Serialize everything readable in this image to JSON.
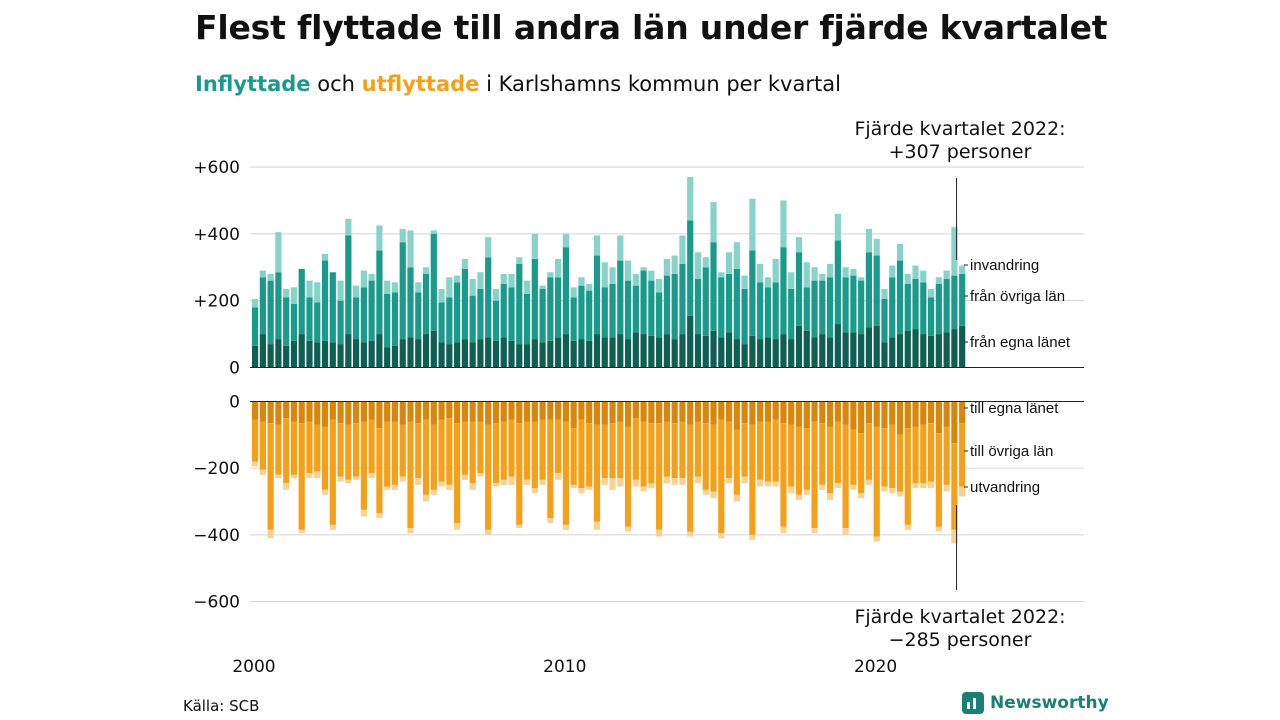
{
  "title": "Flest flyttade till andra län under fjärde kvartalet",
  "subtitle": {
    "in_word": "Inflyttade",
    "and_word": "och",
    "out_word": "utflyttade",
    "rest": "i Karlshamns kommun per kvartal"
  },
  "notes": {
    "top_line1": "Fjärde kvartalet 2022:",
    "top_line2": "+307 personer",
    "bottom_line1": "Fjärde kvartalet 2022:",
    "bottom_line2": "−285 personer"
  },
  "source": "Källa: SCB",
  "brand": "Newsworthy",
  "colors": {
    "in_egna": "#0f5f55",
    "in_ovriga": "#1a9a8a",
    "in_inv": "#88d3c9",
    "out_egna": "#d8860c",
    "out_ovriga": "#f5a01a",
    "out_utv": "#f9d193",
    "grid": "#d4d4d4"
  },
  "chart_data": {
    "type": "bar",
    "stacked": true,
    "x_unit": "quarter",
    "x_start": "2000 Q1",
    "x_end": "2022 Q4",
    "x_ticks": [
      "2000",
      "2010",
      "2020"
    ],
    "y_ticks_top": [
      "+600",
      "+400",
      "+200",
      "0"
    ],
    "y_ticks_bottom": [
      "0",
      "−200",
      "−400",
      "−600"
    ],
    "ylim_top": [
      0,
      600
    ],
    "ylim_bottom": [
      -600,
      0
    ],
    "series_in_labels": [
      "från egna länet",
      "från övriga län",
      "invandring"
    ],
    "series_out_labels": [
      "till egna länet",
      "till övriga län",
      "utvandring"
    ],
    "inflyttade": {
      "fran_egna_lanet": [
        65,
        100,
        70,
        85,
        65,
        80,
        100,
        80,
        75,
        80,
        75,
        70,
        100,
        85,
        75,
        80,
        100,
        60,
        65,
        85,
        90,
        85,
        100,
        110,
        75,
        70,
        75,
        85,
        75,
        85,
        90,
        80,
        90,
        80,
        70,
        70,
        85,
        75,
        80,
        90,
        100,
        80,
        85,
        80,
        100,
        90,
        90,
        100,
        85,
        105,
        100,
        95,
        90,
        100,
        85,
        100,
        155,
        100,
        95,
        110,
        90,
        105,
        85,
        70,
        95,
        85,
        90,
        85,
        100,
        85,
        125,
        110,
        90,
        100,
        90,
        130,
        105,
        105,
        100,
        120,
        125,
        75,
        90,
        100,
        110,
        115,
        100,
        95,
        100,
        105,
        115,
        125
      ],
      "fran_ovriga_lan": [
        115,
        170,
        190,
        200,
        145,
        110,
        195,
        130,
        120,
        240,
        210,
        130,
        295,
        125,
        165,
        180,
        250,
        160,
        160,
        290,
        210,
        140,
        180,
        290,
        120,
        140,
        180,
        210,
        140,
        150,
        240,
        120,
        160,
        160,
        240,
        150,
        240,
        160,
        190,
        180,
        260,
        130,
        160,
        150,
        235,
        150,
        160,
        220,
        175,
        140,
        190,
        165,
        135,
        175,
        195,
        210,
        285,
        165,
        205,
        265,
        180,
        175,
        210,
        165,
        255,
        170,
        150,
        170,
        260,
        150,
        220,
        130,
        170,
        160,
        180,
        250,
        165,
        170,
        160,
        225,
        210,
        130,
        180,
        220,
        140,
        150,
        155,
        115,
        150,
        160,
        160,
        155
      ],
      "invandring": [
        25,
        20,
        20,
        120,
        25,
        50,
        0,
        50,
        60,
        20,
        0,
        60,
        50,
        35,
        50,
        20,
        75,
        40,
        30,
        40,
        110,
        30,
        20,
        10,
        40,
        60,
        20,
        30,
        50,
        50,
        60,
        35,
        30,
        40,
        20,
        40,
        75,
        10,
        15,
        55,
        40,
        30,
        25,
        20,
        60,
        75,
        50,
        75,
        60,
        35,
        10,
        30,
        40,
        50,
        55,
        85,
        130,
        80,
        30,
        120,
        15,
        65,
        80,
        40,
        155,
        55,
        30,
        70,
        140,
        50,
        45,
        75,
        40,
        20,
        40,
        80,
        30,
        20,
        10,
        70,
        50,
        30,
        35,
        50,
        30,
        40,
        35,
        25,
        20,
        25,
        145,
        25
      ]
    },
    "utflyttade": {
      "till_egna_lanet": [
        -55,
        -60,
        -65,
        -70,
        -50,
        -60,
        -65,
        -60,
        -70,
        -75,
        -55,
        -65,
        -70,
        -65,
        -60,
        -55,
        -80,
        -60,
        -60,
        -70,
        -60,
        -65,
        -55,
        -70,
        -55,
        -50,
        -65,
        -60,
        -60,
        -60,
        -70,
        -65,
        -60,
        -55,
        -65,
        -60,
        -60,
        -55,
        -55,
        -55,
        -60,
        -80,
        -55,
        -65,
        -70,
        -70,
        -65,
        -60,
        -75,
        -50,
        -60,
        -65,
        -65,
        -60,
        -65,
        -60,
        -70,
        -60,
        -65,
        -70,
        -55,
        -60,
        -85,
        -65,
        -70,
        -60,
        -60,
        -55,
        -65,
        -70,
        -75,
        -80,
        -60,
        -65,
        -75,
        -60,
        -70,
        -85,
        -95,
        -65,
        -75,
        -80,
        -70,
        -100,
        -80,
        -75,
        -70,
        -65,
        -95,
        -75,
        -125,
        -65
      ],
      "till_ovriga_lan": [
        -125,
        -145,
        -320,
        -150,
        -195,
        -160,
        -320,
        -155,
        -140,
        -190,
        -315,
        -160,
        -165,
        -160,
        -265,
        -160,
        -255,
        -195,
        -190,
        -155,
        -320,
        -165,
        -225,
        -195,
        -185,
        -200,
        -300,
        -160,
        -185,
        -155,
        -315,
        -180,
        -175,
        -170,
        -305,
        -175,
        -200,
        -180,
        -295,
        -160,
        -310,
        -170,
        -205,
        -190,
        -290,
        -160,
        -165,
        -170,
        -300,
        -185,
        -195,
        -180,
        -320,
        -165,
        -165,
        -170,
        -320,
        -165,
        -200,
        -200,
        -340,
        -170,
        -195,
        -160,
        -330,
        -175,
        -180,
        -185,
        -310,
        -185,
        -205,
        -185,
        -320,
        -185,
        -200,
        -185,
        -310,
        -165,
        -180,
        -170,
        -330,
        -175,
        -190,
        -170,
        -290,
        -170,
        -175,
        -175,
        -280,
        -175,
        -260,
        -190
      ],
      "utvandring": [
        -15,
        -15,
        -25,
        -10,
        -20,
        -10,
        -10,
        -15,
        -20,
        -15,
        -15,
        -15,
        -10,
        -10,
        -20,
        -15,
        -15,
        -10,
        -15,
        -15,
        -15,
        -20,
        -20,
        -15,
        -15,
        -15,
        -20,
        -15,
        -20,
        -10,
        -15,
        -10,
        -15,
        -25,
        -10,
        -15,
        -15,
        -15,
        -15,
        -20,
        -15,
        -10,
        -15,
        -10,
        -25,
        -20,
        -35,
        -25,
        -15,
        -20,
        -15,
        -15,
        -20,
        -20,
        -20,
        -20,
        -15,
        -20,
        -15,
        -20,
        -15,
        -15,
        -20,
        -20,
        -15,
        -20,
        -15,
        -15,
        -20,
        -20,
        -15,
        -15,
        -15,
        -15,
        -20,
        -15,
        -20,
        -15,
        -15,
        -15,
        -15,
        -15,
        -15,
        -15,
        -15,
        -15,
        -15,
        -20,
        -15,
        -20,
        -40,
        -30
      ]
    }
  }
}
